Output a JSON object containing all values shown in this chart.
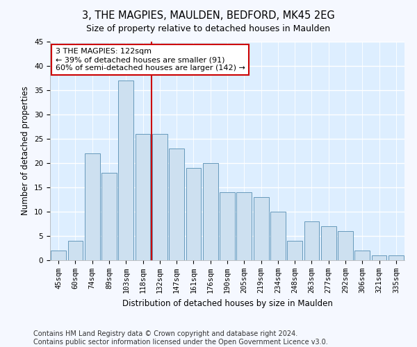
{
  "title": "3, THE MAGPIES, MAULDEN, BEDFORD, MK45 2EG",
  "subtitle": "Size of property relative to detached houses in Maulden",
  "xlabel": "Distribution of detached houses by size in Maulden",
  "ylabel": "Number of detached properties",
  "categories": [
    "45sqm",
    "60sqm",
    "74sqm",
    "89sqm",
    "103sqm",
    "118sqm",
    "132sqm",
    "147sqm",
    "161sqm",
    "176sqm",
    "190sqm",
    "205sqm",
    "219sqm",
    "234sqm",
    "248sqm",
    "263sqm",
    "277sqm",
    "292sqm",
    "306sqm",
    "321sqm",
    "335sqm"
  ],
  "values": [
    2,
    4,
    22,
    18,
    37,
    26,
    26,
    23,
    19,
    20,
    14,
    14,
    13,
    10,
    4,
    8,
    7,
    6,
    2,
    1,
    1
  ],
  "bar_color": "#cde0f0",
  "bar_edge_color": "#6699bb",
  "vline_x": 5.5,
  "vline_color": "#cc0000",
  "annotation_text": "3 THE MAGPIES: 122sqm\n← 39% of detached houses are smaller (91)\n60% of semi-detached houses are larger (142) →",
  "annotation_box_color": "#ffffff",
  "annotation_box_edge_color": "#cc0000",
  "ylim": [
    0,
    45
  ],
  "yticks": [
    0,
    5,
    10,
    15,
    20,
    25,
    30,
    35,
    40,
    45
  ],
  "footer": "Contains HM Land Registry data © Crown copyright and database right 2024.\nContains public sector information licensed under the Open Government Licence v3.0.",
  "plot_bg_color": "#ddeeff",
  "fig_bg_color": "#f5f8ff",
  "grid_color": "#ffffff",
  "title_fontsize": 10.5,
  "label_fontsize": 8.5,
  "tick_fontsize": 7.5,
  "annotation_fontsize": 8,
  "footer_fontsize": 7
}
